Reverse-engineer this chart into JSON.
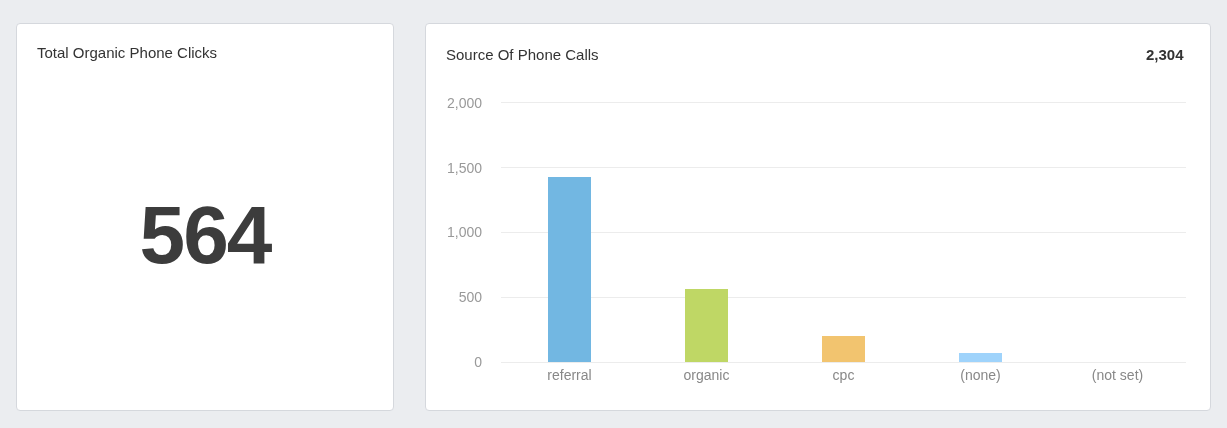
{
  "chart_data": [
    {
      "type": "other",
      "title": "Total Organic Phone Clicks",
      "annotations": [
        "564"
      ]
    },
    {
      "type": "bar",
      "title": "Source Of Phone Calls",
      "annotations": [
        "2,304"
      ],
      "categories": [
        "referral",
        "organic",
        "cpc",
        "(none)",
        "(not set)"
      ],
      "values": [
        1430,
        560,
        200,
        70,
        0
      ],
      "colors": [
        "#72b7e2",
        "#bfd765",
        "#f2c46f",
        "#9fd3fb",
        "#9fd3fb"
      ],
      "ylim": [
        0,
        2000
      ],
      "yticks": [
        0,
        500,
        {
          "value": 1000,
          "label": "1,000"
        },
        {
          "value": 1500,
          "label": "1,500"
        },
        {
          "value": 2000,
          "label": "2,000"
        }
      ],
      "grid": "y"
    }
  ]
}
